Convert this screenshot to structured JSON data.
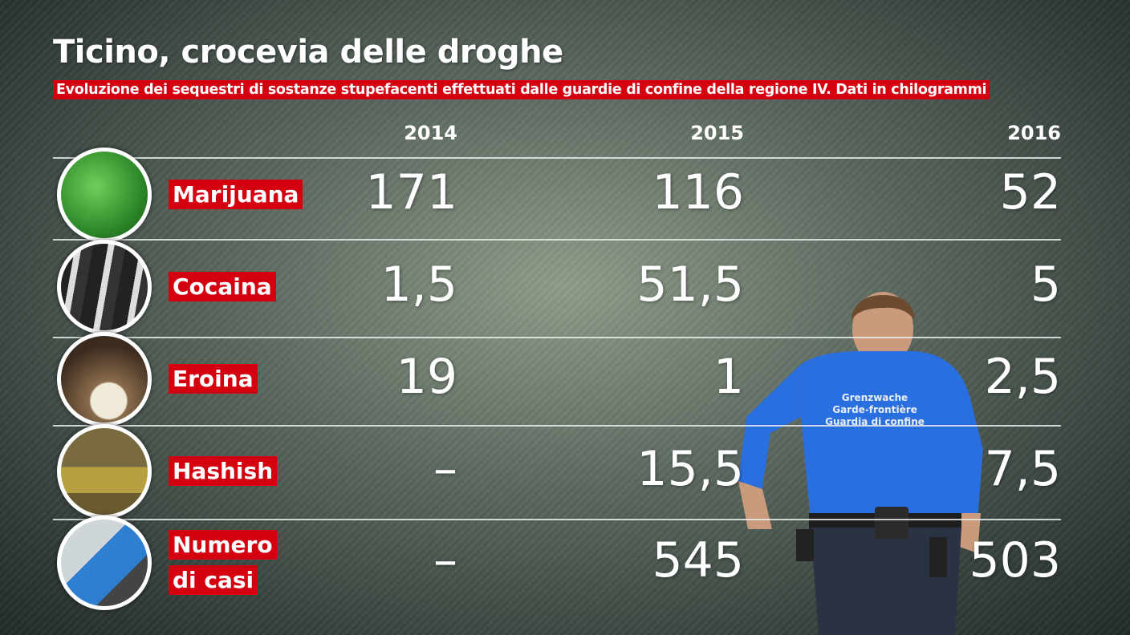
{
  "header": {
    "title": "Ticino, crocevia delle droghe",
    "subtitle": "Evoluzione dei sequestri di sostanze stupefacenti effettuati dalle guardie di confine della regione IV. Dati in chilogrammi"
  },
  "table": {
    "columns": [
      "2014",
      "2015",
      "2016"
    ],
    "rows": [
      {
        "label": "Marijuana",
        "cells": [
          "171",
          "116",
          "52"
        ]
      },
      {
        "label": "Cocaina",
        "cells": [
          "1,5",
          "51,5",
          "5"
        ]
      },
      {
        "label": "Eroina",
        "cells": [
          "19",
          "1",
          "2,5"
        ]
      },
      {
        "label": "Hashish",
        "cells": [
          "–",
          "15,5",
          "7,5"
        ]
      },
      {
        "label": "Numero di casi",
        "cells": [
          "–",
          "545",
          "503"
        ]
      }
    ]
  },
  "figure": {
    "shirt_text": [
      "Grenzwache",
      "Garde-frontière",
      "Guardia di confine"
    ]
  }
}
